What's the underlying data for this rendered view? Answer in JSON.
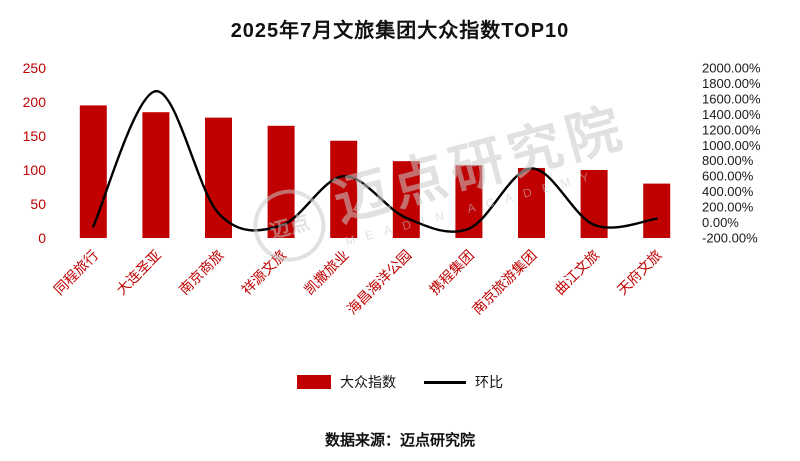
{
  "page": {
    "title": "2025年7月文旅集团大众指数TOP10",
    "footer": "数据来源：迈点研究院",
    "watermark": {
      "text": "迈点研究院",
      "subtext": "MEADIN ACADEMY",
      "seal": "迈点"
    }
  },
  "chart_data": {
    "type": "bar",
    "subtype": "bar-line-combo",
    "title": "2025年7月文旅集团大众指数TOP10",
    "categories": [
      "同程旅行",
      "大连圣亚",
      "南京商旅",
      "祥源文旅",
      "凯撒旅业",
      "海昌海洋公园",
      "携程集团",
      "南京旅游集团",
      "曲江文旅",
      "天府文旅"
    ],
    "series": [
      {
        "name": "大众指数",
        "type": "bar",
        "axis": "left",
        "color": "#c00000",
        "values": [
          195,
          185,
          177,
          165,
          143,
          113,
          107,
          103,
          100,
          80
        ]
      },
      {
        "name": "环比",
        "type": "line",
        "axis": "right",
        "color": "#000000",
        "unit": "%",
        "values": [
          -50,
          1700,
          120,
          -40,
          600,
          60,
          -80,
          700,
          -30,
          50
        ]
      }
    ],
    "left_axis": {
      "min": 0,
      "max": 250,
      "step": 50,
      "color": "#c00000",
      "tick_labels": [
        "0",
        "50",
        "100",
        "150",
        "200",
        "250"
      ]
    },
    "right_axis": {
      "min": -200,
      "max": 2000,
      "step": 200,
      "color": "#1a1a1a",
      "tick_labels": [
        "-200.00%",
        "0.00%",
        "200.00%",
        "400.00%",
        "600.00%",
        "800.00%",
        "1000.00%",
        "1200.00%",
        "1400.00%",
        "1600.00%",
        "1800.00%",
        "2000.00%"
      ]
    },
    "grid": false,
    "legend_position": "bottom"
  },
  "legend": {
    "items": [
      {
        "label": "大众指数",
        "swatch": "bar",
        "color": "#c00000"
      },
      {
        "label": "环比",
        "swatch": "line",
        "color": "#000000"
      }
    ]
  }
}
